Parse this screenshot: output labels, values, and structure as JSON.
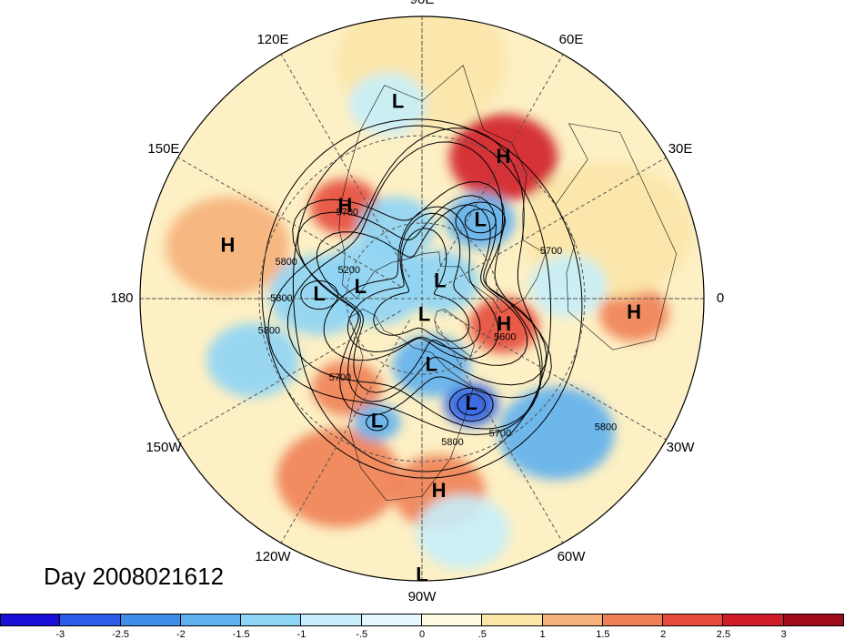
{
  "title": "Day 2008021612",
  "map": {
    "projection": "north-polar-stereographic",
    "longitude_labels": [
      {
        "text": "90E",
        "lon": 90
      },
      {
        "text": "60E",
        "lon": 60
      },
      {
        "text": "30E",
        "lon": 30
      },
      {
        "text": "0",
        "lon": 0
      },
      {
        "text": "30W",
        "lon": -30
      },
      {
        "text": "60W",
        "lon": -60
      },
      {
        "text": "90W",
        "lon": -90
      },
      {
        "text": "120W",
        "lon": -120
      },
      {
        "text": "150W",
        "lon": -150
      },
      {
        "text": "180",
        "lon": 180
      },
      {
        "text": "150E",
        "lon": 150
      },
      {
        "text": "120E",
        "lon": 120
      }
    ],
    "pressure_centers": [
      {
        "type": "L",
        "lon": 97,
        "lat": 20
      },
      {
        "type": "H",
        "lon": 60,
        "lat": 30
      },
      {
        "type": "L",
        "lon": 53,
        "lat": 52
      },
      {
        "type": "H",
        "lon": 130,
        "lat": 44
      },
      {
        "type": "H",
        "lon": 165,
        "lat": 19
      },
      {
        "type": "L",
        "lon": 178,
        "lat": 50
      },
      {
        "type": "L",
        "lon": 170,
        "lat": 65
      },
      {
        "type": "L",
        "lon": 43,
        "lat": 80
      },
      {
        "type": "H",
        "lon": -18,
        "lat": 56
      },
      {
        "type": "L",
        "lon": -82,
        "lat": 83
      },
      {
        "type": "H",
        "lon": -4,
        "lat": 16
      },
      {
        "type": "L",
        "lon": -65,
        "lat": 45
      },
      {
        "type": "L",
        "lon": -82,
        "lat": 63
      },
      {
        "type": "L",
        "lon": -110,
        "lat": 40
      },
      {
        "type": "H",
        "lon": -85,
        "lat": 21
      },
      {
        "type": "L",
        "lon": -90,
        "lat": 1
      }
    ],
    "contour_labels": [
      {
        "text": "5700",
        "lon": 131,
        "lat": 46
      },
      {
        "text": "5200",
        "lon": 159,
        "lat": 59
      },
      {
        "text": "5800",
        "lon": 165,
        "lat": 37
      },
      {
        "text": "5800",
        "lon": 180,
        "lat": 37
      },
      {
        "text": "5800",
        "lon": -168,
        "lat": 32
      },
      {
        "text": "5700",
        "lon": -136,
        "lat": 46
      },
      {
        "text": "5700",
        "lon": 20,
        "lat": 38
      },
      {
        "text": "5600",
        "lon": -25,
        "lat": 54
      },
      {
        "text": "5800",
        "lon": -35,
        "lat": 13
      },
      {
        "text": "5700",
        "lon": -60,
        "lat": 32
      },
      {
        "text": "5800",
        "lon": -78,
        "lat": 35
      }
    ],
    "anomaly_field": [
      {
        "lon": 60,
        "lat": 30,
        "value": 2.6,
        "spread": 14
      },
      {
        "lon": 130,
        "lat": 44,
        "value": 2.4,
        "spread": 9
      },
      {
        "lon": 165,
        "lat": 19,
        "value": 1.4,
        "spread": 16
      },
      {
        "lon": -18,
        "lat": 56,
        "value": 2.2,
        "spread": 9
      },
      {
        "lon": -4,
        "lat": 16,
        "value": 1.5,
        "spread": 9
      },
      {
        "lon": -85,
        "lat": 21,
        "value": 1.6,
        "spread": 12
      },
      {
        "lon": -115,
        "lat": 20,
        "value": 1.5,
        "spread": 16
      },
      {
        "lon": -130,
        "lat": 45,
        "value": 1.6,
        "spread": 9
      },
      {
        "lon": 90,
        "lat": 10,
        "value": 0.8,
        "spread": 22
      },
      {
        "lon": 20,
        "lat": 20,
        "value": 0.8,
        "spread": 22
      },
      {
        "lon": 53,
        "lat": 52,
        "value": -2.0,
        "spread": 9
      },
      {
        "lon": 178,
        "lat": 50,
        "value": -1.5,
        "spread": 13
      },
      {
        "lon": 160,
        "lat": 70,
        "value": -1.4,
        "spread": 14
      },
      {
        "lon": 43,
        "lat": 80,
        "value": -1.4,
        "spread": 10
      },
      {
        "lon": -65,
        "lat": 45,
        "value": -2.7,
        "spread": 7
      },
      {
        "lon": -82,
        "lat": 63,
        "value": -1.8,
        "spread": 10
      },
      {
        "lon": -110,
        "lat": 40,
        "value": -1.6,
        "spread": 6
      },
      {
        "lon": -45,
        "lat": 22,
        "value": -1.7,
        "spread": 15
      },
      {
        "lon": -160,
        "lat": 25,
        "value": -1.3,
        "spread": 12
      },
      {
        "lon": 110,
        "lat": 60,
        "value": -1.2,
        "spread": 10
      },
      {
        "lon": 100,
        "lat": 20,
        "value": -0.8,
        "spread": 10
      },
      {
        "lon": 5,
        "lat": 35,
        "value": -0.8,
        "spread": 10
      },
      {
        "lon": -80,
        "lat": 10,
        "value": -0.6,
        "spread": 12
      }
    ]
  },
  "colorbar": {
    "colors": [
      "#1a0fd6",
      "#2a5ce8",
      "#3f8ee8",
      "#5eb0ef",
      "#8ed4f5",
      "#c6eefb",
      "#e6f8fd",
      "#fffbe0",
      "#fbe6a8",
      "#f6b07a",
      "#ef7f55",
      "#e54a3a",
      "#d01c28",
      "#a00b1c"
    ],
    "ticks": [
      "-3",
      "-2.5",
      "-2",
      "-1.5",
      "-1",
      "-.5",
      "0",
      ".5",
      "1",
      "1.5",
      "2",
      "2.5",
      "3"
    ]
  }
}
